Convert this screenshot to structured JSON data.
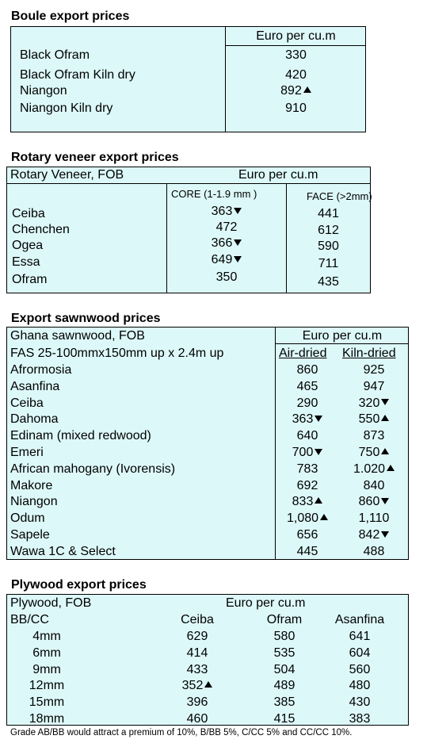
{
  "boule": {
    "title": "Boule export prices",
    "header": "Euro per cu.m",
    "rows": [
      {
        "name": "Black Ofram",
        "value": "330",
        "trend": ""
      },
      {
        "name": "Black Ofram  Kiln dry",
        "value": "420",
        "trend": ""
      },
      {
        "name": "Niangon",
        "value": "892",
        "trend": "up"
      },
      {
        "name": "Niangon Kiln dry",
        "value": "910",
        "trend": ""
      }
    ]
  },
  "veneer": {
    "title": "Rotary veneer export prices",
    "label": "Rotary Veneer,  FOB",
    "unit": "Euro  per cu.m",
    "core_header": "CORE (1-1.9 mm )",
    "face_header": "FACE (>2mm)",
    "rows": [
      {
        "name": "Ceiba",
        "core": "363",
        "core_trend": "down",
        "face": "441"
      },
      {
        "name": "Chenchen",
        "core": "472",
        "core_trend": "",
        "face": "612"
      },
      {
        "name": "Ogea",
        "core": "366",
        "core_trend": "down",
        "face": "590"
      },
      {
        "name": "Essa",
        "core": "649",
        "core_trend": "down",
        "face": "711"
      },
      {
        "name": "Ofram",
        "core": "350",
        "core_trend": "",
        "face": "435"
      }
    ]
  },
  "sawn": {
    "title": "Export sawnwood prices",
    "label": "Ghana sawnwood, FOB",
    "unit": "Euro per cu.m",
    "spec": "FAS 25-100mmx150mm up x 2.4m up",
    "col_air": "Air-dried",
    "col_kiln": "Kiln-dried",
    "rows": [
      {
        "name": "Afrormosia",
        "air": "860",
        "air_trend": "",
        "kiln": "925",
        "kiln_trend": ""
      },
      {
        "name": "Asanfina",
        "air": "465",
        "air_trend": "",
        "kiln": "947",
        "kiln_trend": ""
      },
      {
        "name": "Ceiba",
        "air": "290",
        "air_trend": "",
        "kiln": "320",
        "kiln_trend": "down"
      },
      {
        "name": "Dahoma",
        "air": "363",
        "air_trend": "down",
        "kiln": "550",
        "kiln_trend": "up"
      },
      {
        "name": "Edinam (mixed redwood)",
        "air": "640",
        "air_trend": "",
        "kiln": "873",
        "kiln_trend": ""
      },
      {
        "name": "Emeri",
        "air": "700",
        "air_trend": "down",
        "kiln": "750",
        "kiln_trend": "up"
      },
      {
        "name": "African mahogany (Ivorensis)",
        "air": "783",
        "air_trend": "",
        "kiln": "1.020",
        "kiln_trend": "up"
      },
      {
        "name": "Makore",
        "air": "692",
        "air_trend": "",
        "kiln": "840",
        "kiln_trend": ""
      },
      {
        "name": "Niangon",
        "air": "833",
        "air_trend": "up",
        "kiln": "860",
        "kiln_trend": "down"
      },
      {
        "name": "Odum",
        "air": "1,080",
        "air_trend": "up",
        "kiln": "1,110",
        "kiln_trend": ""
      },
      {
        "name": "Sapele",
        "air": "656",
        "air_trend": "",
        "kiln": "842",
        "kiln_trend": "down"
      },
      {
        "name": "Wawa 1C & Select",
        "air": "445",
        "air_trend": "",
        "kiln": "488",
        "kiln_trend": ""
      }
    ]
  },
  "plywood": {
    "title": "Plywood export prices",
    "label": "Plywood, FOB",
    "unit": "Euro per cu.m",
    "grade": "BB/CC",
    "cols": [
      "Ceiba",
      "Ofram",
      "Asanfina"
    ],
    "rows": [
      {
        "size": "4mm",
        "v": [
          "629",
          "580",
          "641"
        ],
        "t": [
          "",
          "",
          ""
        ]
      },
      {
        "size": "6mm",
        "v": [
          "414",
          "535",
          "604"
        ],
        "t": [
          "",
          "",
          ""
        ]
      },
      {
        "size": "9mm",
        "v": [
          "433",
          "504",
          "560"
        ],
        "t": [
          "",
          "",
          ""
        ]
      },
      {
        "size": "12mm",
        "v": [
          "352",
          "489",
          "480"
        ],
        "t": [
          "up",
          "",
          ""
        ]
      },
      {
        "size": "15mm",
        "v": [
          "396",
          "385",
          "430"
        ],
        "t": [
          "",
          "",
          ""
        ]
      },
      {
        "size": "18mm",
        "v": [
          "460",
          "415",
          "383"
        ],
        "t": [
          "",
          "",
          ""
        ]
      }
    ],
    "note": "Grade AB/BB would attract a premium of 10%, B/BB 5%, C/CC 5% and CC/CC 10%."
  }
}
